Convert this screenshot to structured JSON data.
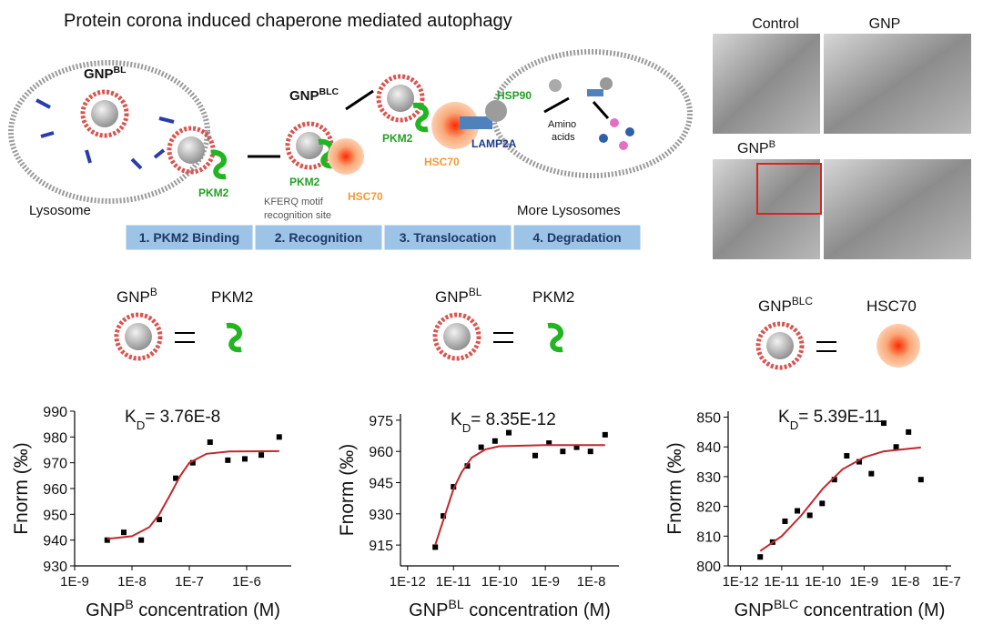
{
  "figure_title": "Protein corona induced chaperone mediated autophagy",
  "diagram": {
    "np_bl": {
      "base": "GNP",
      "sup": "BL"
    },
    "np_blc": {
      "base": "GNP",
      "sup": "BLC"
    },
    "lysosome": "Lysosome",
    "pkm2_labels": [
      "PKM2",
      "PKM2",
      "PKM2"
    ],
    "kferq": [
      "KFERQ motif",
      "recognition site"
    ],
    "hsc70_labels": [
      "HSC70",
      "HSC70"
    ],
    "hsp90": "HSP90",
    "lamp2a": "LAMP2A",
    "amino_acids": [
      "Amino",
      "acids"
    ],
    "more_lysosomes": "More Lysosomes",
    "steps": [
      "1. PKM2 Binding",
      "2. Recognition",
      "3. Translocation",
      "4. Degradation"
    ]
  },
  "tem": {
    "labels": [
      "Control",
      "GNP"
    ],
    "gnpb": {
      "base": "GNP",
      "sup": "B"
    }
  },
  "binding": [
    {
      "left": {
        "base": "GNP",
        "sup": "B"
      },
      "right": "PKM2"
    },
    {
      "left": {
        "base": "GNP",
        "sup": "BL"
      },
      "right": "PKM2"
    },
    {
      "left": {
        "base": "GNP",
        "sup": "BLC"
      },
      "right": "HSC70"
    }
  ],
  "chart_data": [
    {
      "type": "scatter",
      "xscale": "log",
      "annotation": {
        "base": "K",
        "sub": "D",
        "rest": "= 3.76E-8"
      },
      "y_label": "Fnorm (‰)",
      "x_label": {
        "base": "GNP",
        "sup": "B",
        "rest": " concentration (M)"
      },
      "xlim": [
        1e-09,
        6e-06
      ],
      "ylim": [
        930,
        990
      ],
      "xticks": [
        {
          "value": 1e-09,
          "label": "1E-9"
        },
        {
          "value": 1e-08,
          "label": "1E-8"
        },
        {
          "value": 1e-07,
          "label": "1E-7"
        },
        {
          "value": 1e-06,
          "label": "1E-6"
        }
      ],
      "yticks": [
        930,
        940,
        950,
        960,
        970,
        980,
        990
      ],
      "series": [
        {
          "marker": "square",
          "color": "#000000",
          "x": [
            3.7e-09,
            7.2e-09,
            1.45e-08,
            3e-08,
            5.8e-08,
            1.15e-07,
            2.3e-07,
            4.7e-07,
            9.3e-07,
            1.8e-06,
            3.7e-06
          ],
          "values": [
            940,
            943,
            940,
            948,
            964,
            970,
            978,
            971,
            971.5,
            973,
            980
          ]
        },
        {
          "marker": "line",
          "color": "#c0282d",
          "x": [
            3.7e-09,
            1e-08,
            2e-08,
            3e-08,
            4.5e-08,
            7e-08,
            1e-07,
            2e-07,
            5e-07,
            3.7e-06
          ],
          "values": [
            940.5,
            941.5,
            945,
            950,
            957,
            965,
            970,
            973.5,
            974.4,
            974.5
          ]
        }
      ]
    },
    {
      "type": "scatter",
      "xscale": "log",
      "annotation": {
        "base": "K",
        "sub": "D",
        "rest": "= 8.35E-12"
      },
      "y_label": "Fnorm (‰)",
      "x_label": {
        "base": "GNP",
        "sup": "BL",
        "rest": " concentration (M)"
      },
      "xlim": [
        7e-13,
        4e-08
      ],
      "ylim": [
        905,
        978
      ],
      "xticks": [
        {
          "value": 1e-12,
          "label": "1E-12"
        },
        {
          "value": 1e-11,
          "label": "1E-11"
        },
        {
          "value": 1e-10,
          "label": "1E-10"
        },
        {
          "value": 1e-09,
          "label": "1E-9"
        },
        {
          "value": 1e-08,
          "label": "1E-8"
        }
      ],
      "yticks": [
        915,
        930,
        945,
        960,
        975
      ],
      "series": [
        {
          "marker": "square",
          "color": "#000000",
          "x": [
            4e-12,
            6e-12,
            1e-11,
            2e-11,
            4e-11,
            8e-11,
            1.6e-10,
            6e-10,
            1.2e-09,
            2.4e-09,
            4.8e-09,
            9.6e-09,
            2e-08
          ],
          "values": [
            914,
            929,
            943,
            953,
            962,
            965,
            969,
            958,
            964,
            960,
            962,
            960,
            968
          ]
        },
        {
          "marker": "line",
          "color": "#c0282d",
          "x": [
            4e-12,
            6e-12,
            1e-11,
            1.5e-11,
            2.5e-11,
            5e-11,
            1e-10,
            1e-09,
            2e-08
          ],
          "values": [
            915,
            927,
            942,
            950,
            957,
            961,
            962.5,
            963,
            963
          ]
        }
      ]
    },
    {
      "type": "scatter",
      "xscale": "log",
      "annotation": {
        "base": "K",
        "sub": "D",
        "rest": "= 5.39E-11"
      },
      "y_label": "Fnorm (‰)",
      "x_label": {
        "base": "GNP",
        "sup": "BLC",
        "rest": " concentration (M)"
      },
      "xlim": [
        5e-13,
        1.3e-07
      ],
      "ylim": [
        800,
        852
      ],
      "xticks": [
        {
          "value": 1e-12,
          "label": "1E-12"
        },
        {
          "value": 1e-11,
          "label": "1E-11"
        },
        {
          "value": 1e-10,
          "label": "1E-10"
        },
        {
          "value": 1e-09,
          "label": "1E-9"
        },
        {
          "value": 1e-08,
          "label": "1E-8"
        },
        {
          "value": 1e-07,
          "label": "1E-7"
        }
      ],
      "yticks": [
        800,
        810,
        820,
        830,
        840,
        850
      ],
      "series": [
        {
          "marker": "square",
          "color": "#000000",
          "x": [
            3e-12,
            6e-12,
            1.2e-11,
            2.4e-11,
            4.8e-11,
            9.6e-11,
            1.9e-10,
            3.8e-10,
            7.6e-10,
            1.5e-09,
            3e-09,
            6e-09,
            1.2e-08,
            2.4e-08
          ],
          "values": [
            803,
            808,
            815,
            818.5,
            817,
            821,
            829,
            837,
            835,
            831,
            848,
            840,
            845,
            829
          ]
        },
        {
          "marker": "line",
          "color": "#c0282d",
          "x": [
            3e-12,
            1e-11,
            3e-11,
            1e-10,
            3e-10,
            1e-09,
            3e-09,
            2.4e-08
          ],
          "values": [
            805,
            810,
            817,
            826,
            832.5,
            836.5,
            838.5,
            839.8
          ]
        }
      ]
    }
  ]
}
